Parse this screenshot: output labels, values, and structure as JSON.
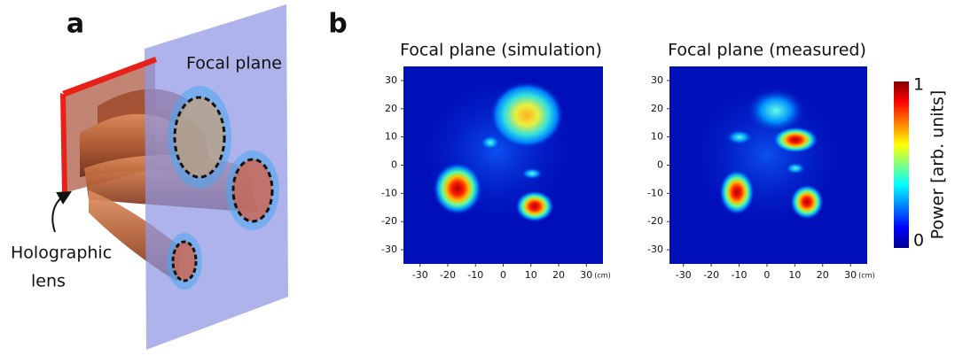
{
  "panel_a": {
    "label": "a",
    "focal_plane": "Focal plane",
    "lens_label": [
      "Holographic",
      "lens"
    ]
  },
  "panel_b": {
    "label": "b",
    "plots": [
      {
        "title": "Focal plane (simulation)",
        "xlim": [
          -36,
          36
        ],
        "ylim": [
          -35,
          35
        ],
        "xticks": [
          -30,
          -20,
          -10,
          0,
          10,
          20,
          30
        ],
        "yticks": [
          30,
          20,
          10,
          0,
          -10,
          -20,
          -30
        ],
        "x_unit": "(cm)"
      },
      {
        "title": "Focal plane (measured)",
        "xlim": [
          -35,
          36
        ],
        "ylim": [
          -35,
          35
        ],
        "xticks": [
          -30,
          -20,
          -10,
          0,
          10,
          20,
          30
        ],
        "yticks": [
          30,
          20,
          10,
          0,
          -10,
          -20,
          -30
        ],
        "x_unit": "(cm)"
      }
    ],
    "colorbar": {
      "label": "Power [arb. units]",
      "range": [
        0,
        1
      ],
      "ticks": [
        0,
        1
      ]
    }
  }
}
